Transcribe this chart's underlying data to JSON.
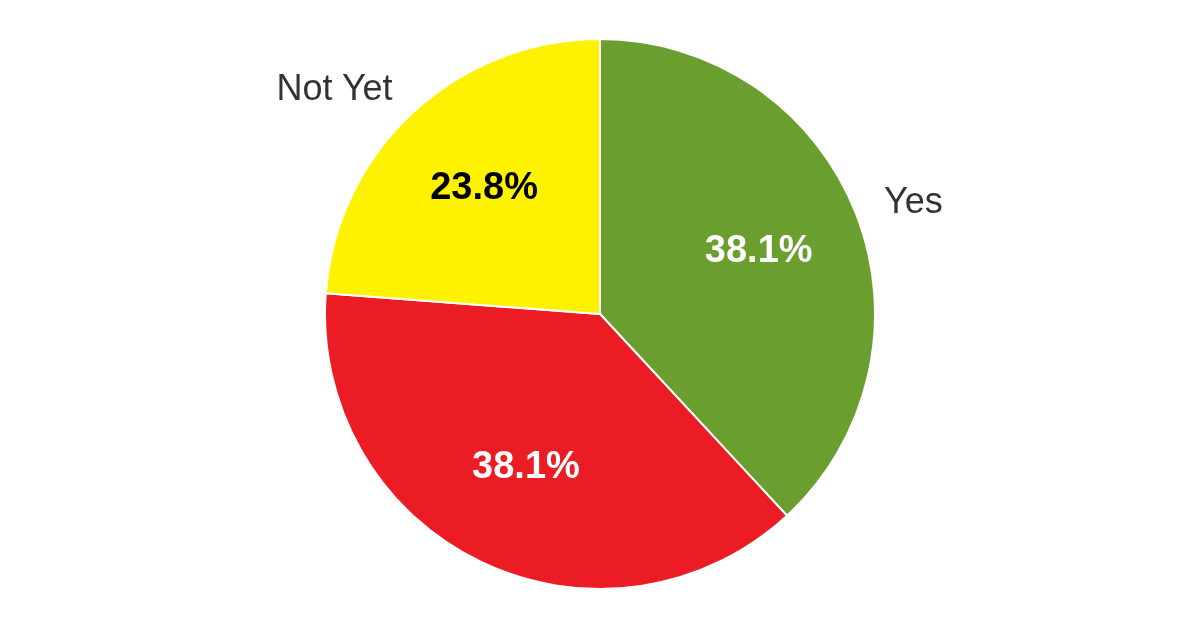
{
  "chart_data": {
    "type": "pie",
    "categories": [
      "Yes",
      null,
      "Not Yet"
    ],
    "values": [
      38.1,
      38.1,
      23.8
    ],
    "colors": [
      "#6a9e2f",
      "#ec1c24",
      "#fff200"
    ],
    "value_labels": [
      "38.1%",
      "38.1%",
      "23.8%"
    ],
    "legend": false
  }
}
